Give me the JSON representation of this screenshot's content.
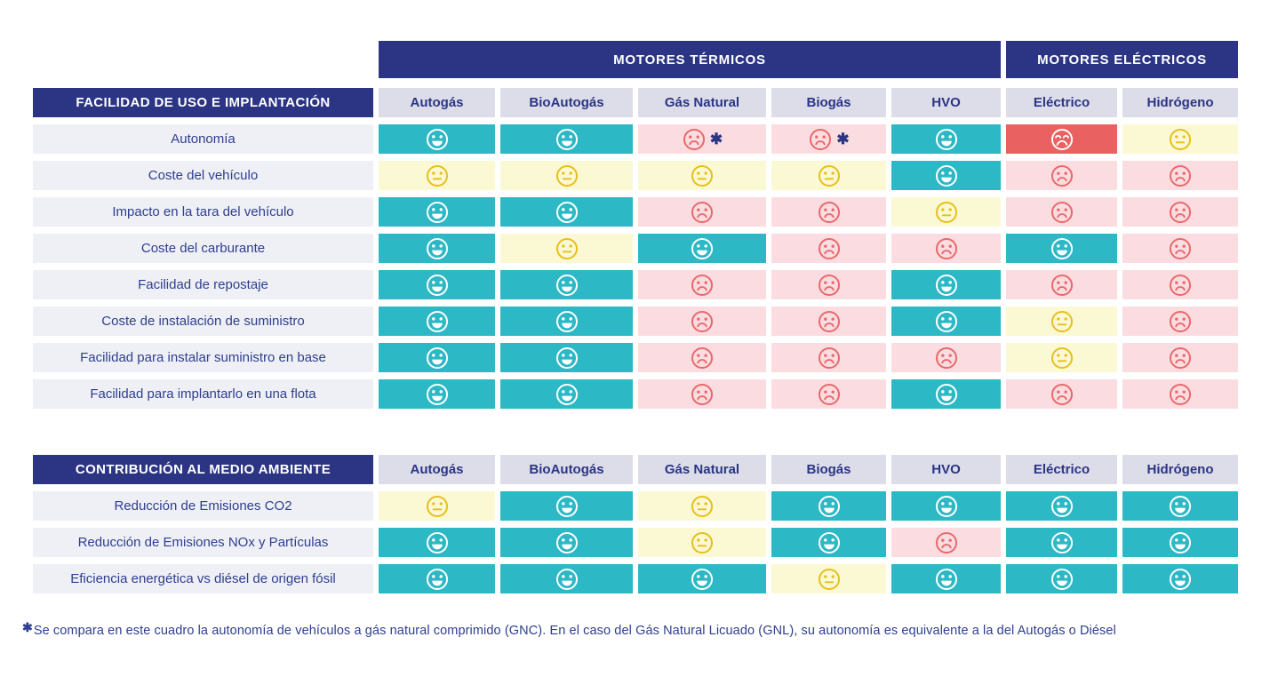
{
  "banner": {
    "thermal": "MOTORES TÉRMICOS",
    "electric": "MOTORES ELÉCTRICOS"
  },
  "columns": [
    "Autogás",
    "BioAutogás",
    "Gás Natural",
    "Biogás",
    "HVO",
    "Eléctrico",
    "Hidrógeno"
  ],
  "colors": {
    "navy": "#2b3584",
    "teal": "#2cb8c5",
    "cream": "#fbf8d4",
    "gold": "#e7bf1c",
    "pink": "#fbdce0",
    "red": "#ea6161",
    "red_face": "#e8696b",
    "header_bg": "#dcdde9",
    "label_bg": "#eef0f6"
  },
  "sections": [
    {
      "title": "FACILIDAD DE USO E IMPLANTACIÓN",
      "show_banner": true,
      "rows": [
        {
          "label": "Autonomía",
          "ratings": [
            "happy",
            "happy",
            "sad*",
            "sad*",
            "happy",
            "verysad",
            "neutral"
          ]
        },
        {
          "label": "Coste del vehículo",
          "ratings": [
            "neutral",
            "neutral",
            "neutral",
            "neutral",
            "happy",
            "sad",
            "sad"
          ]
        },
        {
          "label": "Impacto en la tara del vehículo",
          "ratings": [
            "happy",
            "happy",
            "sad",
            "sad",
            "neutral",
            "sad",
            "sad"
          ]
        },
        {
          "label": "Coste del carburante",
          "ratings": [
            "happy",
            "neutral",
            "happy",
            "sad",
            "sad",
            "happy",
            "sad"
          ]
        },
        {
          "label": "Facilidad de repostaje",
          "ratings": [
            "happy",
            "happy",
            "sad",
            "sad",
            "happy",
            "sad",
            "sad"
          ]
        },
        {
          "label": "Coste de instalación de suministro",
          "ratings": [
            "happy",
            "happy",
            "sad",
            "sad",
            "happy",
            "neutral",
            "sad"
          ]
        },
        {
          "label": "Facilidad para instalar suministro en base",
          "ratings": [
            "happy",
            "happy",
            "sad",
            "sad",
            "sad",
            "neutral",
            "sad"
          ]
        },
        {
          "label": "Facilidad para implantarlo en una flota",
          "ratings": [
            "happy",
            "happy",
            "sad",
            "sad",
            "happy",
            "sad",
            "sad"
          ]
        }
      ]
    },
    {
      "title": "CONTRIBUCIÓN AL MEDIO AMBIENTE",
      "show_banner": false,
      "rows": [
        {
          "label": "Reducción de Emisiones CO2",
          "ratings": [
            "neutral",
            "happy",
            "neutral",
            "happy",
            "happy",
            "happy",
            "happy"
          ]
        },
        {
          "label": "Reducción de Emisiones NOx y Partículas",
          "ratings": [
            "happy",
            "happy",
            "neutral",
            "happy",
            "sad",
            "happy",
            "happy"
          ]
        },
        {
          "label": "Eficiencia energética vs diésel de origen fósil",
          "ratings": [
            "happy",
            "happy",
            "happy",
            "neutral",
            "happy",
            "happy",
            "happy"
          ]
        }
      ]
    }
  ],
  "footnote": {
    "marker": "✱",
    "text": "Se compara en este cuadro la autonomía de vehículos a gás natural comprimido (GNC). En el caso del Gás Natural Licuado (GNL), su autonomía es equivalente a la del Autogás o Diésel"
  },
  "chart_data": {
    "type": "table",
    "title": "Comparativa de motores: facilidad de uso e implantación y contribución al medio ambiente",
    "column_groups": [
      {
        "label": "MOTORES TÉRMICOS",
        "columns": [
          "Autogás",
          "BioAutogás",
          "Gás Natural",
          "Biogás",
          "HVO"
        ]
      },
      {
        "label": "MOTORES ELÉCTRICOS",
        "columns": [
          "Eléctrico",
          "Hidrógeno"
        ]
      }
    ],
    "rating_scale": [
      "happy",
      "neutral",
      "sad",
      "verysad"
    ],
    "sections": [
      {
        "name": "FACILIDAD DE USO E IMPLANTACIÓN",
        "rows": [
          {
            "label": "Autonomía",
            "values": [
              "happy",
              "happy",
              "sad (✱)",
              "sad (✱)",
              "happy",
              "verysad",
              "neutral"
            ]
          },
          {
            "label": "Coste del vehículo",
            "values": [
              "neutral",
              "neutral",
              "neutral",
              "neutral",
              "happy",
              "sad",
              "sad"
            ]
          },
          {
            "label": "Impacto en la tara del vehículo",
            "values": [
              "happy",
              "happy",
              "sad",
              "sad",
              "neutral",
              "sad",
              "sad"
            ]
          },
          {
            "label": "Coste del carburante",
            "values": [
              "happy",
              "neutral",
              "happy",
              "sad",
              "sad",
              "happy",
              "sad"
            ]
          },
          {
            "label": "Facilidad de repostaje",
            "values": [
              "happy",
              "happy",
              "sad",
              "sad",
              "happy",
              "sad",
              "sad"
            ]
          },
          {
            "label": "Coste de instalación de suministro",
            "values": [
              "happy",
              "happy",
              "sad",
              "sad",
              "happy",
              "neutral",
              "sad"
            ]
          },
          {
            "label": "Facilidad para instalar suministro en base",
            "values": [
              "happy",
              "happy",
              "sad",
              "sad",
              "sad",
              "neutral",
              "sad"
            ]
          },
          {
            "label": "Facilidad para implantarlo en una flota",
            "values": [
              "happy",
              "happy",
              "sad",
              "sad",
              "happy",
              "sad",
              "sad"
            ]
          }
        ]
      },
      {
        "name": "CONTRIBUCIÓN AL MEDIO AMBIENTE",
        "rows": [
          {
            "label": "Reducción de Emisiones CO2",
            "values": [
              "neutral",
              "happy",
              "neutral",
              "happy",
              "happy",
              "happy",
              "happy"
            ]
          },
          {
            "label": "Reducción de Emisiones NOx y Partículas",
            "values": [
              "happy",
              "happy",
              "neutral",
              "happy",
              "sad",
              "happy",
              "happy"
            ]
          },
          {
            "label": "Eficiencia energética vs diésel de origen fósil",
            "values": [
              "happy",
              "happy",
              "happy",
              "neutral",
              "happy",
              "happy",
              "happy"
            ]
          }
        ]
      }
    ],
    "footnote": "✱ Se compara en este cuadro la autonomía de vehículos a gás natural comprimido (GNC). En el caso del Gás Natural Licuado (GNL), su autonomía es equivalente a la del Autogás o Diésel"
  }
}
